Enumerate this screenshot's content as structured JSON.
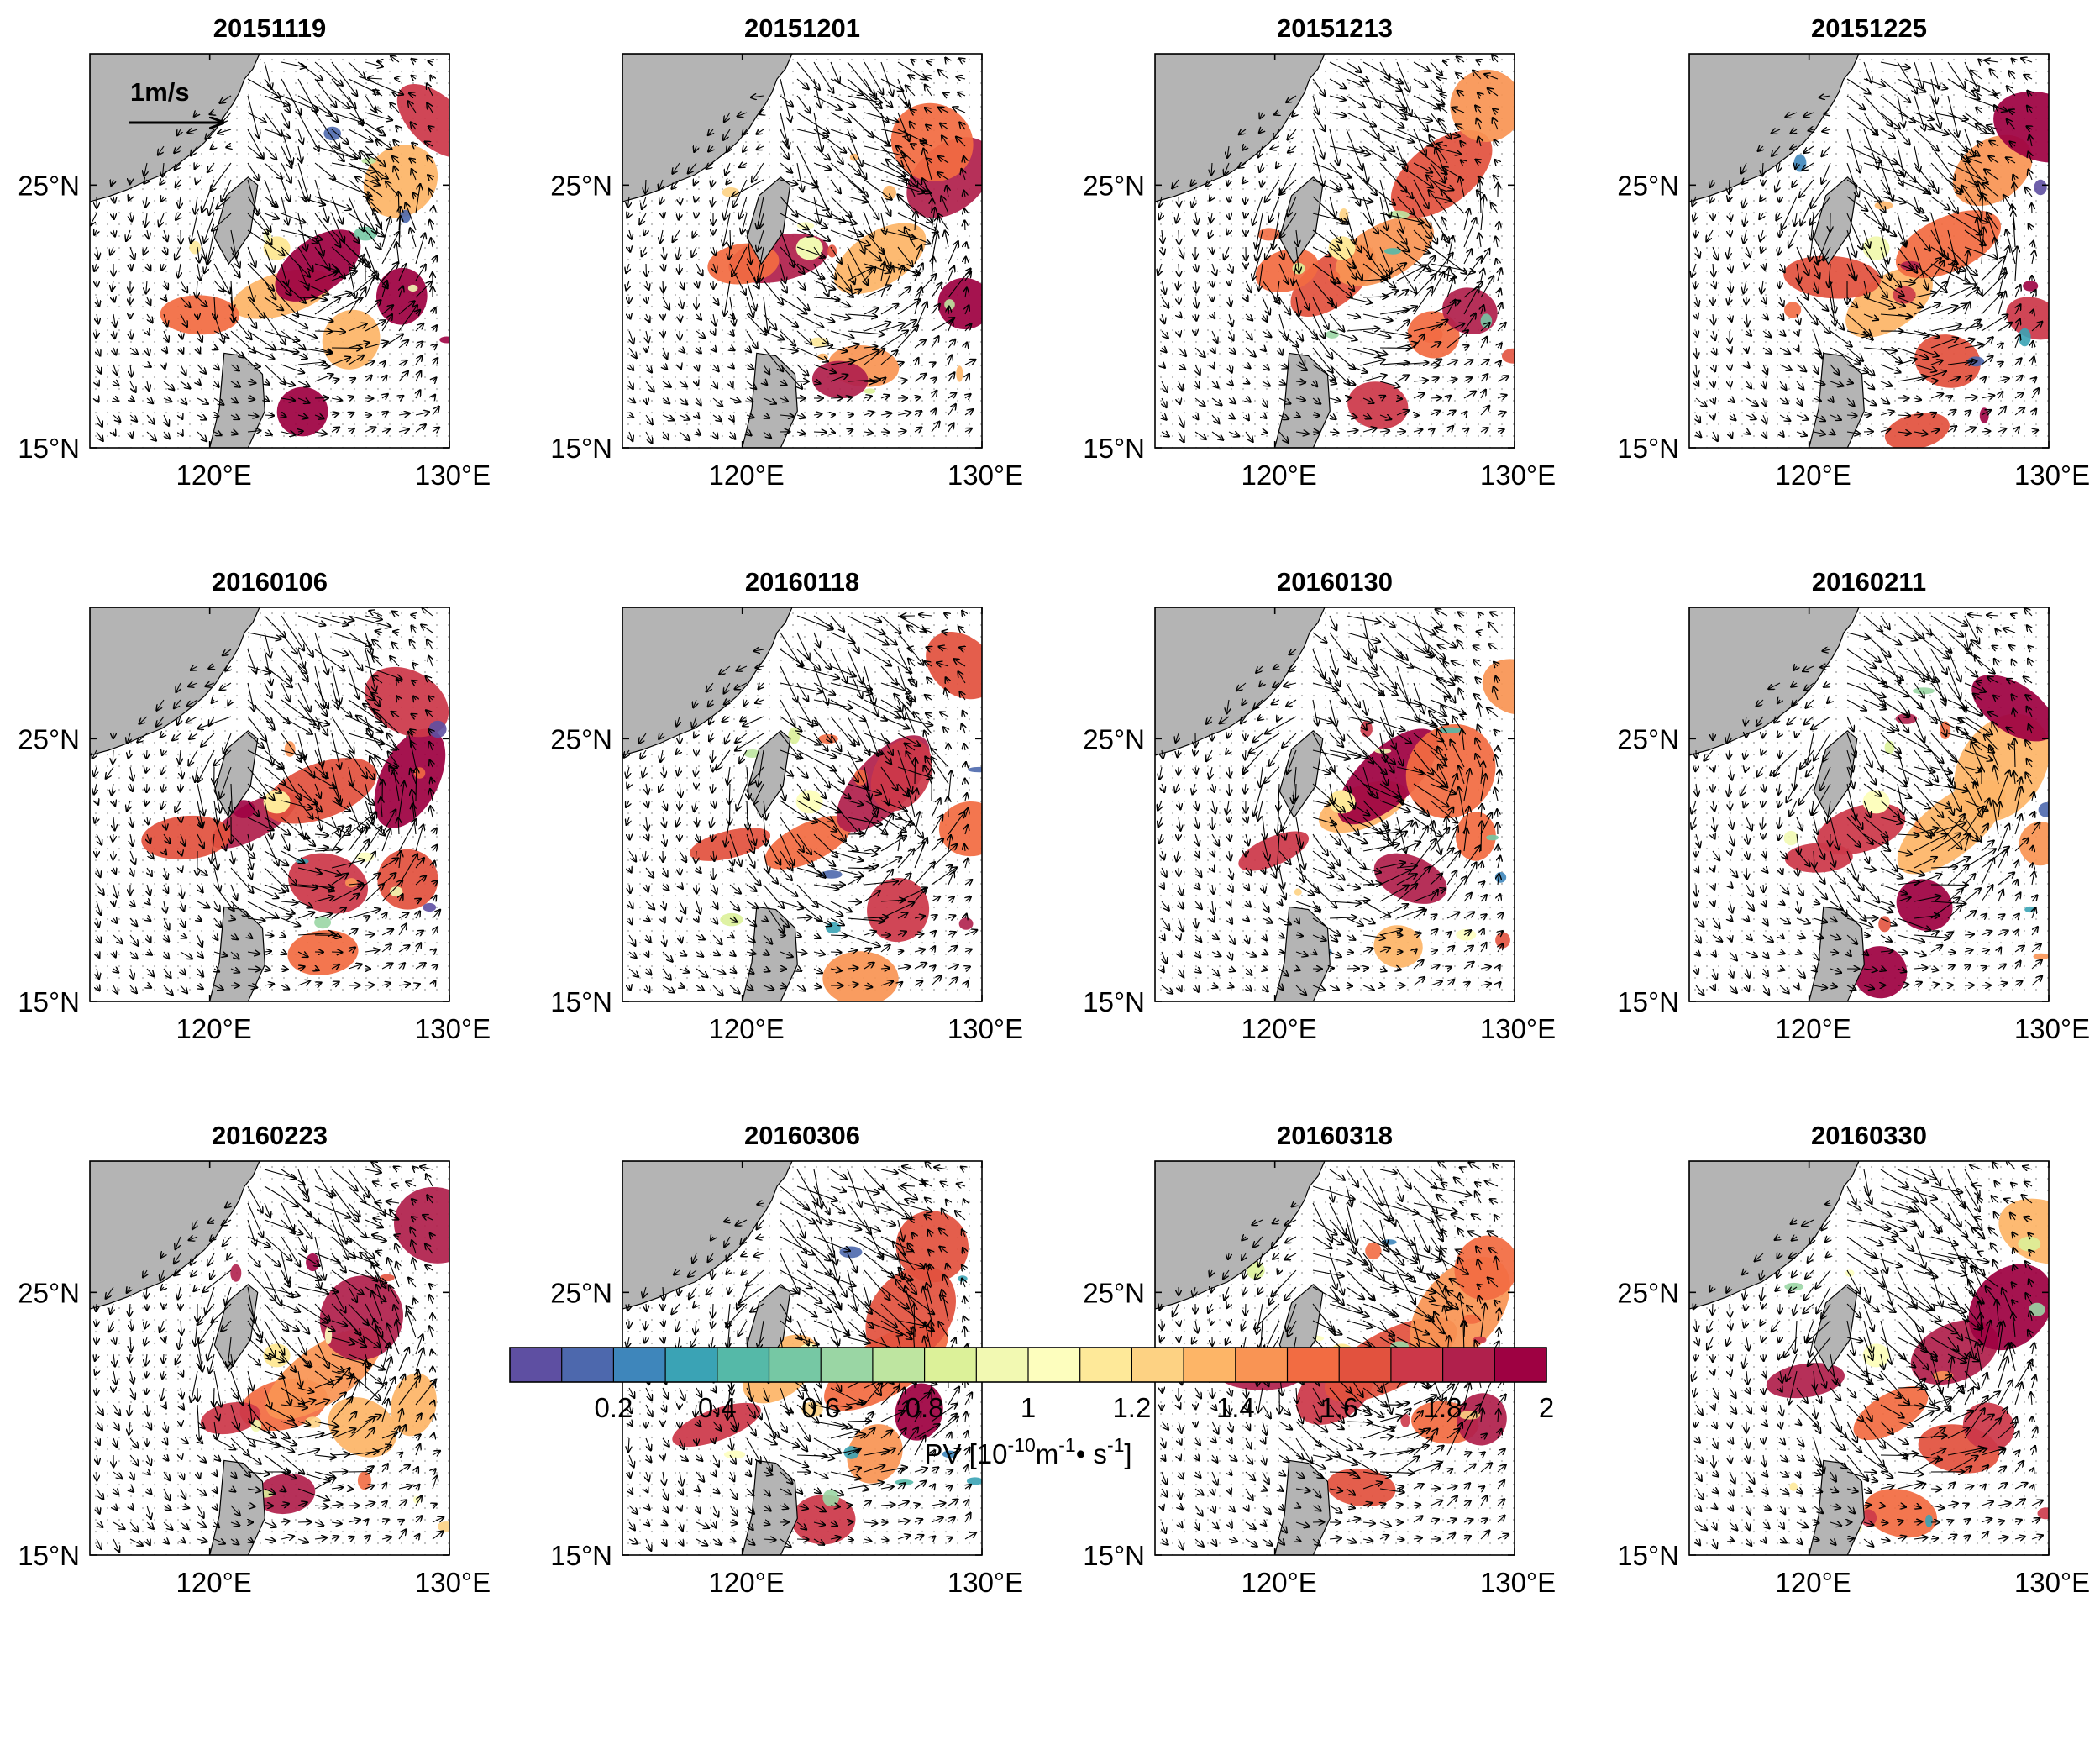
{
  "chart_data": {
    "type": "heatmap",
    "description_units": "PV shading with surface current vectors, 12 snapshots",
    "lon_range": [
      115,
      130
    ],
    "lat_range": [
      15,
      30
    ],
    "x_ticks": [
      "120°E",
      "130°E"
    ],
    "y_ticks": [
      "15°N",
      "25°N"
    ],
    "vector_scale_label": "1m/s",
    "panels": [
      {
        "title": "20151119"
      },
      {
        "title": "20151201"
      },
      {
        "title": "20151213"
      },
      {
        "title": "20151225"
      },
      {
        "title": "20160106"
      },
      {
        "title": "20160118"
      },
      {
        "title": "20160130"
      },
      {
        "title": "20160211"
      },
      {
        "title": "20160223"
      },
      {
        "title": "20160306"
      },
      {
        "title": "20160318"
      },
      {
        "title": "20160330"
      }
    ],
    "colorbar": {
      "min": 0,
      "max": 2,
      "step": 0.1,
      "tick_labels": [
        "0.2",
        "0.4",
        "0.6",
        "0.8",
        "1",
        "1.2",
        "1.4",
        "1.6",
        "1.8",
        "2"
      ],
      "label_main": "PV [10",
      "label_exp1": "-10",
      "label_mid": "m",
      "label_exp2": "-1",
      "label_dot": "•",
      "label_s": " s",
      "label_exp3": "-1",
      "label_end": "]",
      "colors": [
        "#5e4fa2",
        "#4d68ad",
        "#3e86bb",
        "#3aa3b5",
        "#55b9a8",
        "#76c8a4",
        "#9ad6a4",
        "#bee5a0",
        "#dcf199",
        "#f2f9b2",
        "#fdfebe",
        "#fee999",
        "#fdd283",
        "#fdb567",
        "#f99454",
        "#f26c42",
        "#e2523e",
        "#cc3849",
        "#b0204c",
        "#9e0142"
      ]
    }
  }
}
